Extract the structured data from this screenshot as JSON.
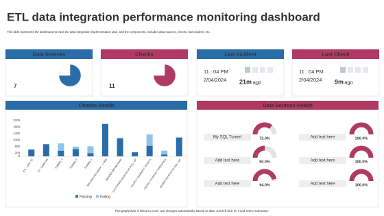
{
  "title": "ETL data integration performance monitoring dashboard",
  "subtitle": "This slide represents the dashboard to track the data integration implementation plan, and the components, includes data sources, checks, last incident, etc.",
  "footer": "This graph/chart is linked to excel, and changes automatically based on data. Just left click on it and select “Edit Data”.",
  "cards": [
    {
      "title": "Data Sources",
      "value": 7
    },
    {
      "title": "Checks",
      "value": 11
    },
    {
      "title": "Last Incident",
      "time": "11 : 04 PM",
      "date": "2/04/2024",
      "elapsed": "21m",
      "suffix": "ago"
    },
    {
      "title": "Last Check",
      "time": "11 : 04 PM",
      "date": "2/04/2024",
      "elapsed": "9m",
      "suffix": "ago"
    }
  ],
  "chart_data": [
    {
      "type": "pie",
      "values": [
        75,
        25
      ],
      "colors": [
        "#2a6ca8",
        "#ffffff"
      ]
    },
    {
      "type": "pie",
      "values": [
        75,
        25
      ],
      "colors": [
        "#b03a64",
        "#ffffff"
      ]
    },
    {
      "type": "bar",
      "stacked": true,
      "title": "Checks Health",
      "categories": [
        "ETL - DIFF TE",
        "ID - SAME DB",
        "TUNNEL 3",
        "TUNNEL 2",
        "TUNNEL 1",
        "BEFORE PER WEEK - 1 AND",
        "DEPEND DEFINITIONS",
        "CUSTOMER SOURCE VS ROLL UP",
        "HOURLY SUMMARY TICKETS",
        "HOURLY CHARGE THRESHOLD",
        "ORDER SOURCE VS ROLL UP"
      ],
      "series": [
        {
          "name": "Passing",
          "color": "#2a6ca8",
          "values": [
            420,
            750,
            350,
            450,
            200,
            2000,
            1100,
            250,
            650,
            120,
            1150
          ]
        },
        {
          "name": "Failing",
          "color": "#8fc3ea",
          "values": [
            0,
            0,
            450,
            150,
            420,
            0,
            50,
            0,
            700,
            230,
            50
          ]
        }
      ],
      "ylim": [
        0,
        2200
      ],
      "yticks": [
        0,
        200,
        600,
        1000,
        1400,
        1800,
        2200
      ],
      "legend": "bottom"
    },
    {
      "type": "gauge",
      "title": "Data Sources Health",
      "categories": [
        "My SQL Tunnel",
        "Add text here",
        "Add text here",
        "Add text here",
        "Add text here",
        "Add text here"
      ],
      "values": [
        72,
        50,
        94,
        100,
        100,
        100
      ],
      "value_labels": [
        "72.0%",
        "50.0%",
        "94.0%",
        "100.0%",
        "100.0%",
        "100.0%"
      ],
      "ylim": [
        0,
        100
      ],
      "color": "#b03a64",
      "track": "#e3e3e3"
    }
  ]
}
